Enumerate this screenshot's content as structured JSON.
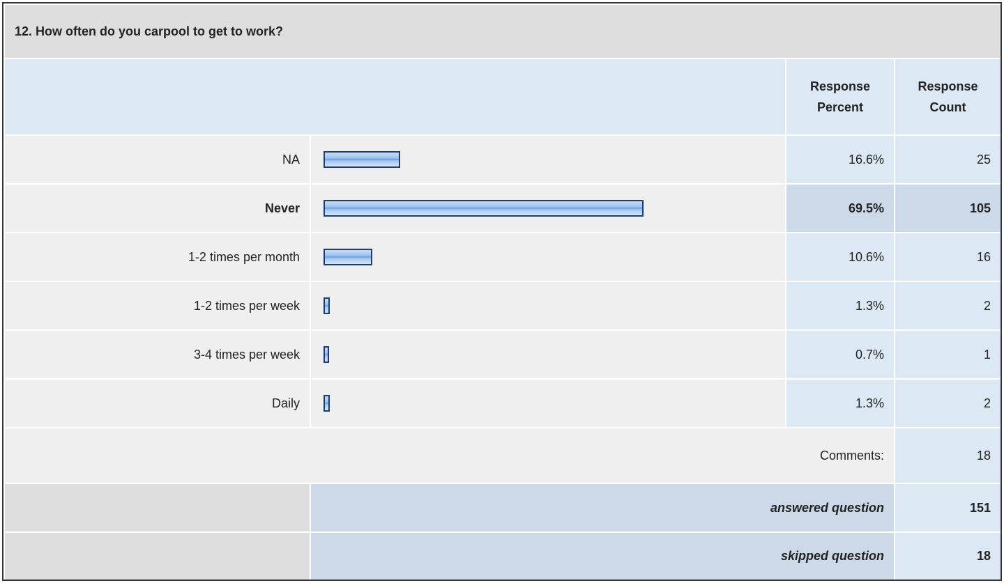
{
  "question": "12. How often do you carpool to get to work?",
  "headers": [
    "Response Percent",
    "Response Count"
  ],
  "rows": [
    {
      "label": "NA",
      "percent": 16.6,
      "percent_label": "16.6%",
      "count": 25
    },
    {
      "label": "Never",
      "percent": 69.5,
      "percent_label": "69.5%",
      "count": 105,
      "highlight": true
    },
    {
      "label": "1-2 times per month",
      "percent": 10.6,
      "percent_label": "10.6%",
      "count": 16
    },
    {
      "label": "1-2 times per week",
      "percent": 1.3,
      "percent_label": "1.3%",
      "count": 2
    },
    {
      "label": "3-4 times per week",
      "percent": 0.7,
      "percent_label": "0.7%",
      "count": 1
    },
    {
      "label": "Daily",
      "percent": 1.3,
      "percent_label": "1.3%",
      "count": 2
    }
  ],
  "comments": {
    "label": "Comments:",
    "count": 18
  },
  "answered": {
    "label": "answered question",
    "count": 151
  },
  "skipped": {
    "label": "skipped question",
    "count": 18
  }
}
